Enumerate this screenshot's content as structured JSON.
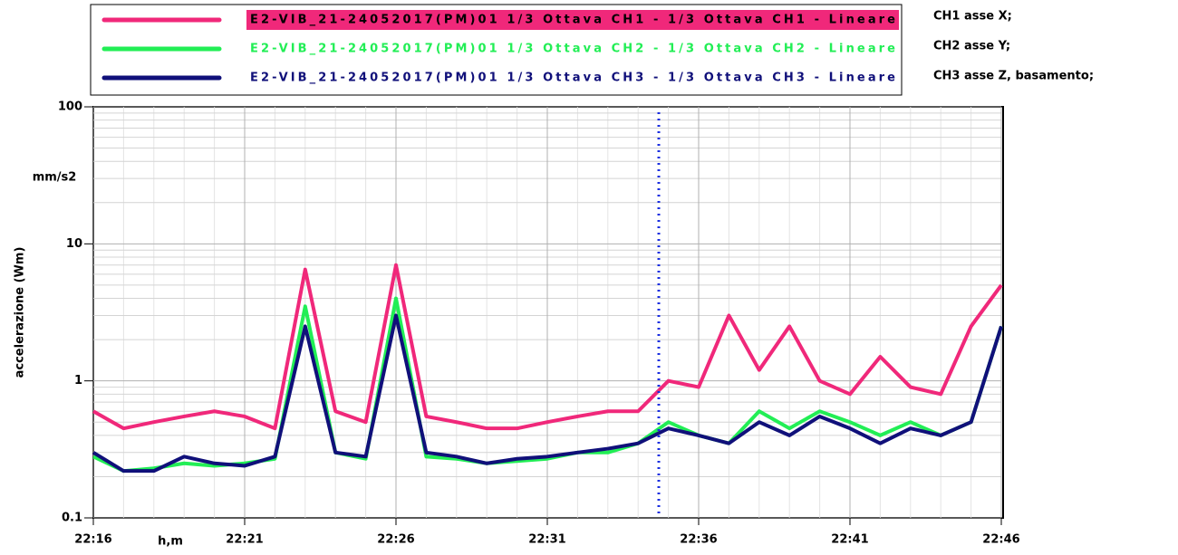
{
  "chart_data": {
    "type": "line",
    "x": [
      "22:16",
      "22:17",
      "22:18",
      "22:19",
      "22:20",
      "22:21",
      "22:22",
      "22:23",
      "22:24",
      "22:25",
      "22:26",
      "22:27",
      "22:28",
      "22:29",
      "22:30",
      "22:31",
      "22:32",
      "22:33",
      "22:34",
      "22:35",
      "22:36",
      "22:37",
      "22:38",
      "22:39",
      "22:40",
      "22:41",
      "22:42",
      "22:43",
      "22:44",
      "22:45",
      "22:46"
    ],
    "series": [
      {
        "name": "E2-VIB_21-24052017(PM)01 1/3 Ottava CH1 - 1/3 Ottava CH1 - Lineare",
        "color": "#f0287a",
        "values": [
          0.6,
          0.45,
          0.5,
          0.55,
          0.6,
          0.55,
          0.45,
          6.5,
          0.6,
          0.5,
          7,
          0.55,
          0.5,
          0.45,
          0.45,
          0.5,
          0.55,
          0.6,
          0.6,
          1.0,
          0.9,
          3,
          1.2,
          2.5,
          1.0,
          0.8,
          1.5,
          0.9,
          0.8,
          2.5,
          5
        ]
      },
      {
        "name": "E2-VIB_21-24052017(PM)01 1/3 Ottava CH2 - 1/3 Ottava CH2 - Lineare",
        "color": "#22ee55",
        "values": [
          0.28,
          0.22,
          0.23,
          0.25,
          0.24,
          0.25,
          0.27,
          3.5,
          0.3,
          0.27,
          4,
          0.28,
          0.27,
          0.25,
          0.26,
          0.27,
          0.3,
          0.3,
          0.35,
          0.5,
          0.4,
          0.35,
          0.6,
          0.45,
          0.6,
          0.5,
          0.4,
          0.5,
          0.4,
          0.5,
          2.5
        ]
      },
      {
        "name": "E2-VIB_21-24052017(PM)01 1/3 Ottava CH3 - 1/3 Ottava CH3 - Lineare",
        "color": "#10107a",
        "values": [
          0.3,
          0.22,
          0.22,
          0.28,
          0.25,
          0.24,
          0.28,
          2.5,
          0.3,
          0.28,
          3,
          0.3,
          0.28,
          0.25,
          0.27,
          0.28,
          0.3,
          0.32,
          0.35,
          0.45,
          0.4,
          0.35,
          0.5,
          0.4,
          0.55,
          0.45,
          0.35,
          0.45,
          0.4,
          0.5,
          2.5
        ]
      }
    ],
    "ylim": [
      0.1,
      100
    ],
    "yticks": [
      0.1,
      1,
      10,
      100
    ],
    "log_y": true,
    "grid": true,
    "xticks": [
      "22:16",
      "22:21",
      "22:26",
      "22:31",
      "22:36",
      "22:41",
      "22:46"
    ],
    "y_label": "accelerazione (Wm)",
    "y_unit": "mm/s2",
    "x_label": "h,m",
    "annotations": [
      "CH1 asse X;",
      "CH2 asse Y;",
      "CH3 asse Z, basamento;"
    ]
  }
}
